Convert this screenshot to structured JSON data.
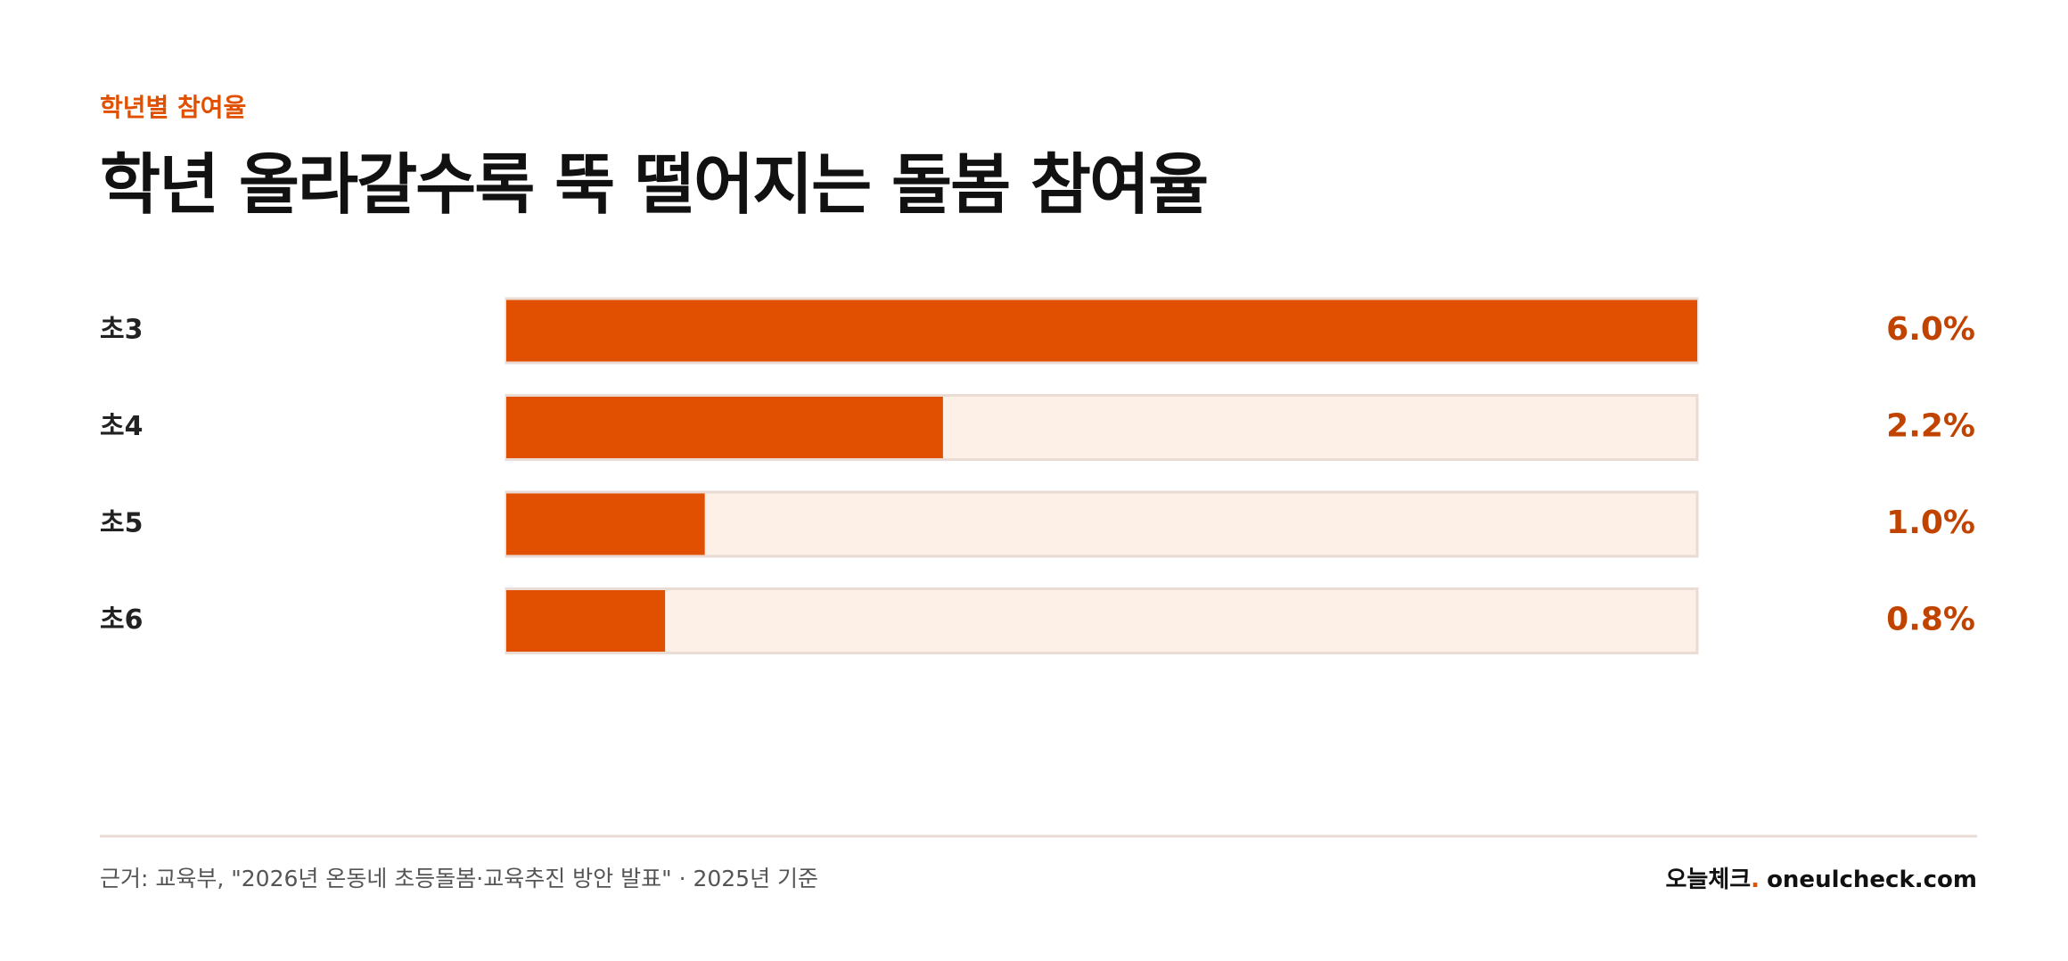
{
  "chart_data": {
    "type": "hbar",
    "kicker": "학년별 참여율",
    "title": "학년 올라갈수록 뚝 떨어지는 돌봄 참여율",
    "categories": [
      "초3",
      "초4",
      "초5",
      "초6"
    ],
    "values": [
      6.0,
      2.2,
      1.0,
      0.8
    ],
    "value_labels": [
      "6.0%",
      "2.2%",
      "1.0%",
      "0.8%"
    ],
    "color": "#e05000",
    "track_color": "#fdf0e7",
    "xlim": [
      0,
      6
    ],
    "source": "근거: 교육부, \"2026년 온동네 초등돌봄·교육추진 방안 발표\" · 2025년 기준",
    "brand": {
      "name": "오늘체크",
      "dot": ".",
      "url": "oneulcheck.com"
    }
  }
}
